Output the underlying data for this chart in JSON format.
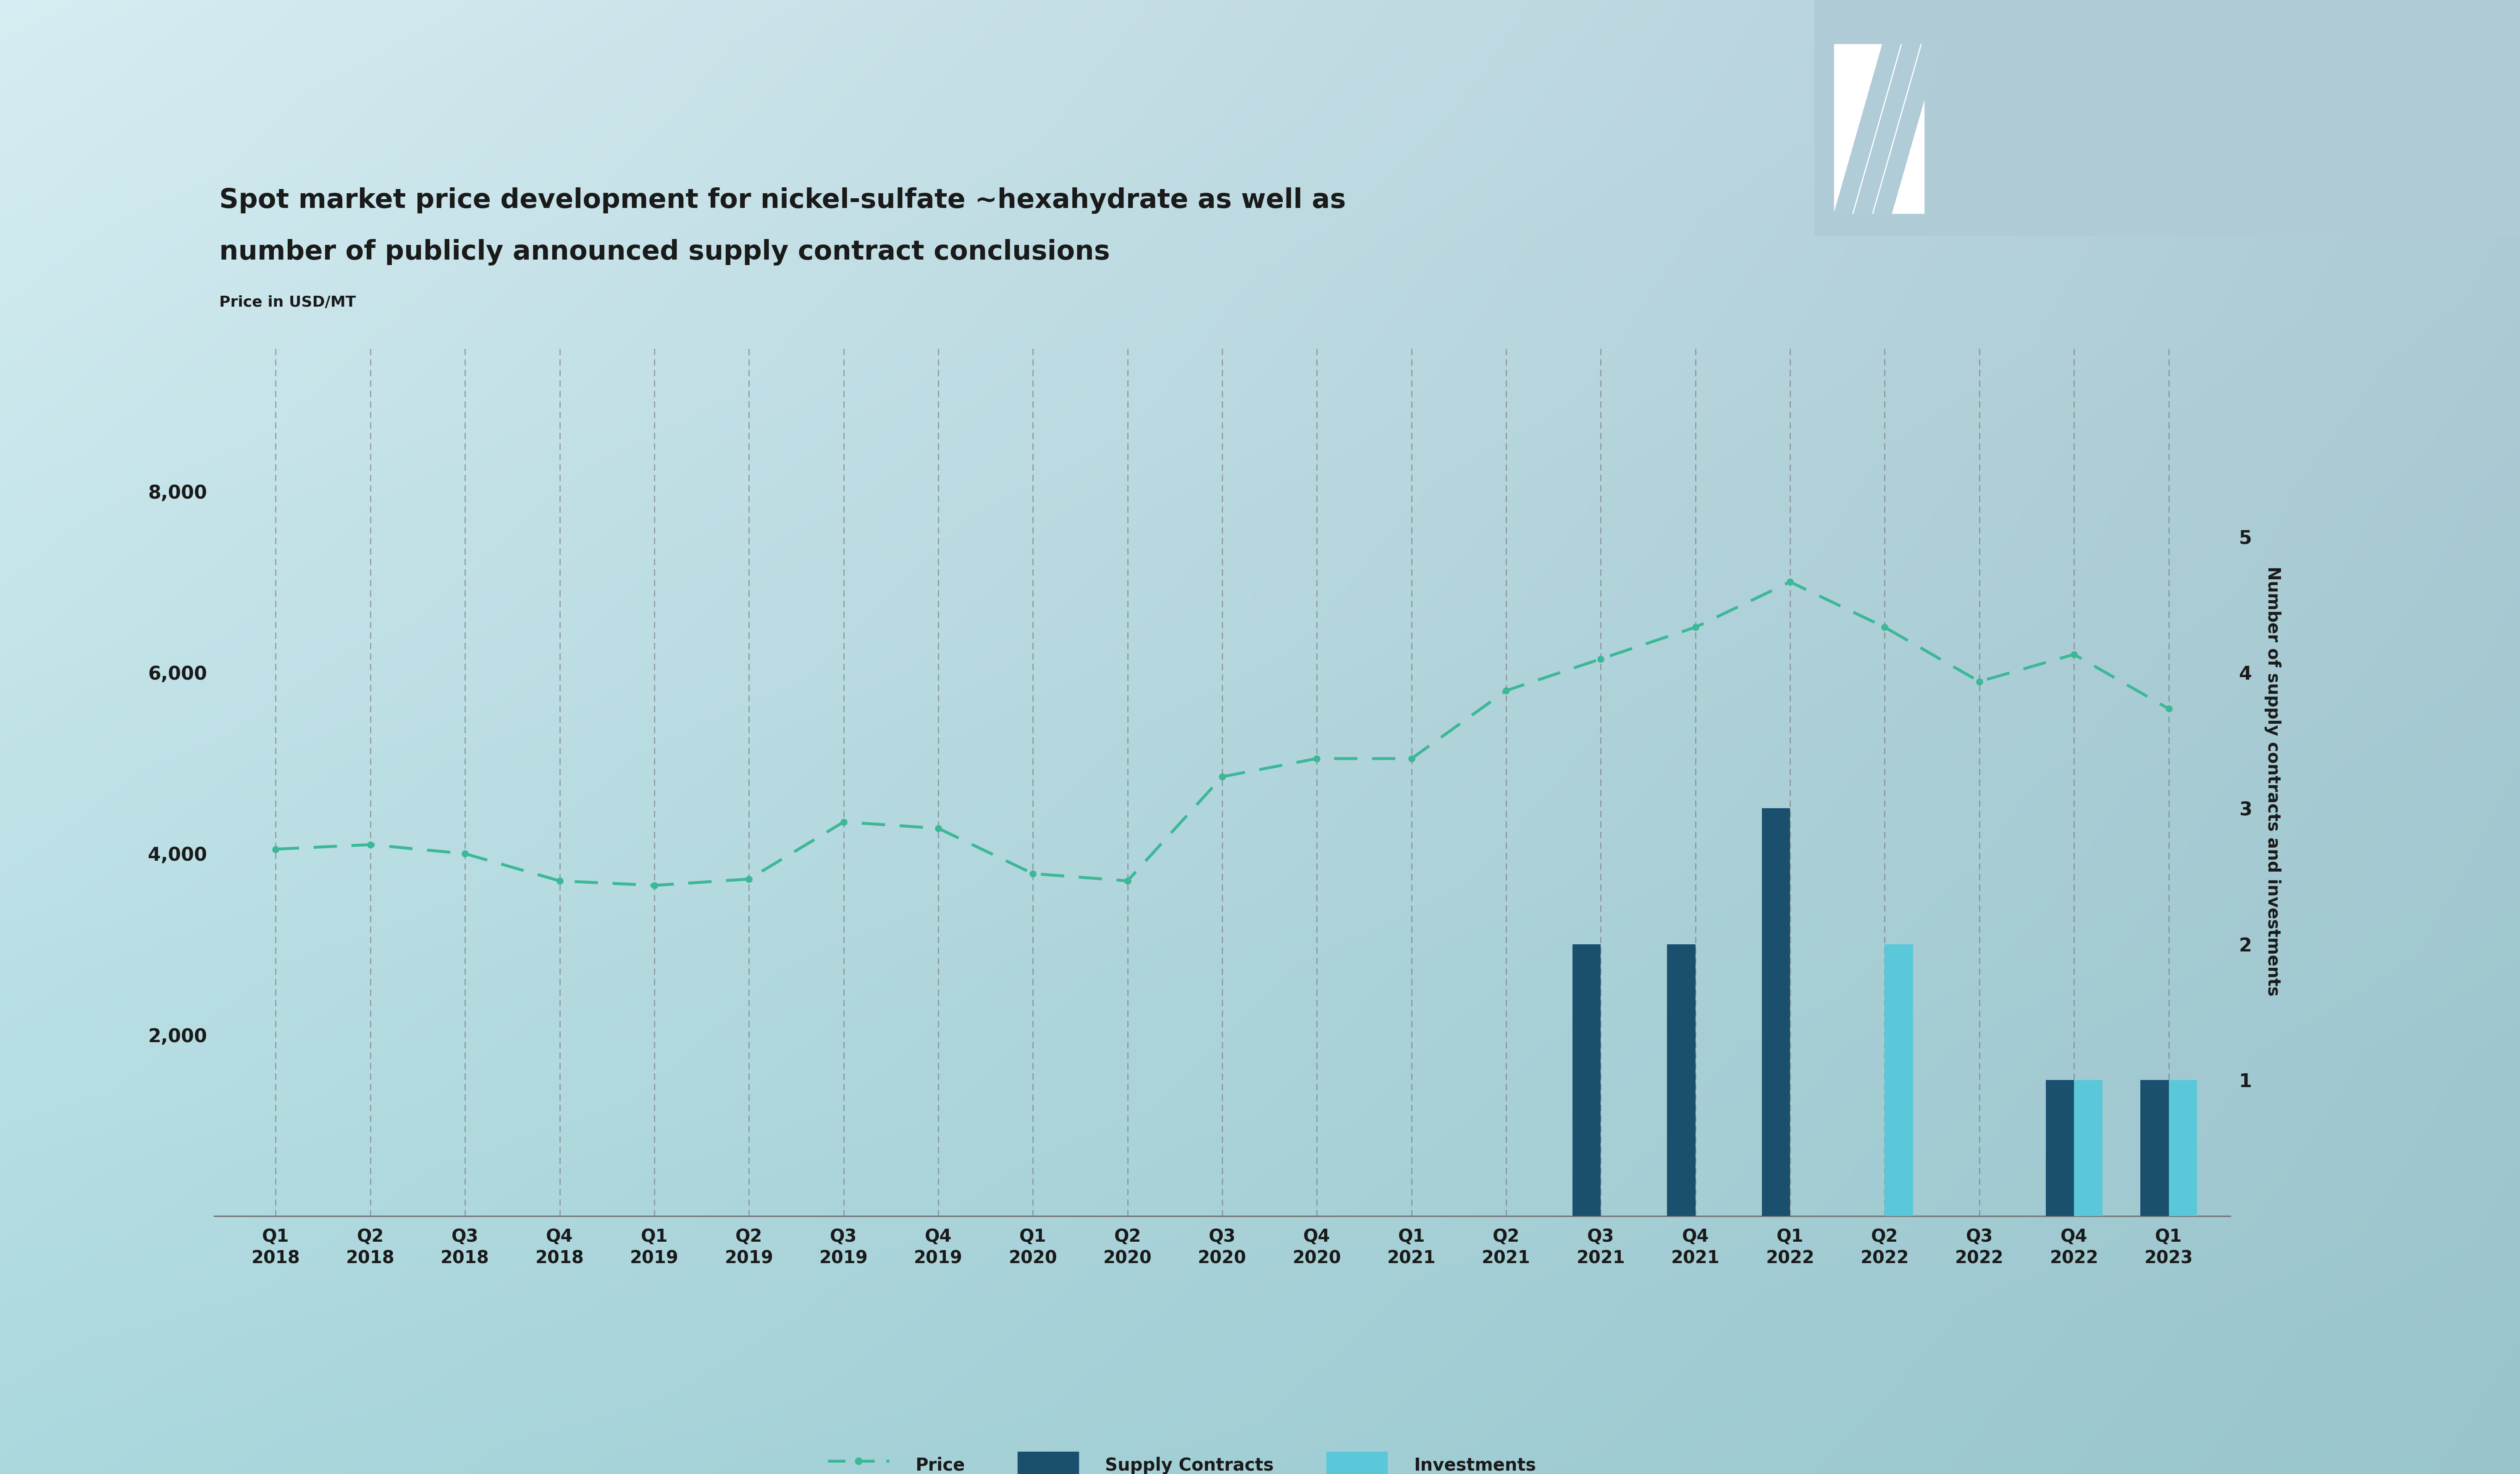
{
  "title_line1": "Spot market price development for nickel-sulfate ~hexahydrate as well as",
  "title_line2": "number of publicly announced supply contract conclusions",
  "ylabel_left": "Price in USD/MT",
  "ylabel_right": "Number of supply contracts and investments",
  "categories": [
    "Q1\n2018",
    "Q2\n2018",
    "Q3\n2018",
    "Q4\n2018",
    "Q1\n2019",
    "Q2\n2019",
    "Q3\n2019",
    "Q4\n2019",
    "Q1\n2020",
    "Q2\n2020",
    "Q3\n2020",
    "Q4\n2020",
    "Q1\n2021",
    "Q2\n2021",
    "Q3\n2021",
    "Q4\n2021",
    "Q1\n2022",
    "Q2\n2022",
    "Q3\n2022",
    "Q4\n2022",
    "Q1\n2023"
  ],
  "price_values": [
    4050,
    4100,
    4000,
    3700,
    3650,
    3720,
    4350,
    4280,
    3780,
    3700,
    4850,
    5050,
    5050,
    5800,
    6150,
    6500,
    7000,
    6500,
    5900,
    6200,
    5600
  ],
  "supply_contracts": [
    0,
    0,
    0,
    0,
    0,
    0,
    0,
    0,
    0,
    0,
    0,
    0,
    0,
    0,
    2,
    2,
    3,
    0,
    0,
    1,
    1
  ],
  "investments": [
    0,
    0,
    0,
    0,
    0,
    0,
    0,
    0,
    0,
    0,
    0,
    0,
    0,
    0,
    0,
    0,
    0,
    2,
    0,
    1,
    1
  ],
  "ylim_left": [
    0,
    9600
  ],
  "ylim_right": [
    0,
    6.4
  ],
  "yticks_left": [
    2000,
    4000,
    6000,
    8000
  ],
  "yticks_right": [
    1,
    2,
    3,
    4,
    5
  ],
  "bg_tl": [
    0.84,
    0.93,
    0.95
  ],
  "bg_tr": [
    0.69,
    0.8,
    0.84
  ],
  "bg_bl": [
    0.67,
    0.85,
    0.87
  ],
  "bg_br": [
    0.6,
    0.77,
    0.8
  ],
  "price_color": "#3db897",
  "supply_contracts_color": "#1a4f6e",
  "investments_color": "#5bc8d9",
  "grid_color": "#777777",
  "axis_color": "#777777",
  "text_color": "#1a1a1a",
  "white": "#ffffff",
  "bar_width": 0.3,
  "legend_labels": [
    "Price",
    "Supply Contracts",
    "Investments"
  ]
}
